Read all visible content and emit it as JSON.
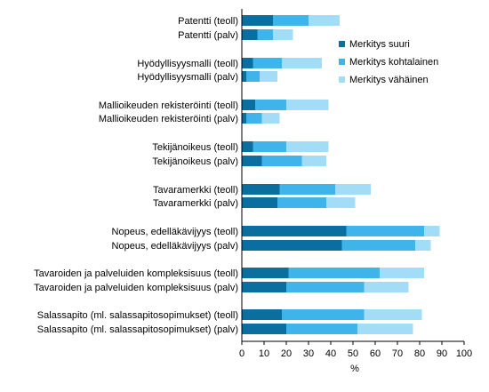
{
  "chart_data": {
    "type": "bar",
    "orientation": "horizontal",
    "stacked": true,
    "categories": [
      "Patentti (teoll)",
      "Patentti (palv)",
      "Hyödyllisyysmalli (teoll)",
      "Hyödyllisyysmalli (palv)",
      "Mallioikeuden rekisteröinti (teoll)",
      "Mallioikeuden rekisteröinti (palv)",
      "Tekijänoikeus (teoll)",
      "Tekijänoikeus (palv)",
      "Tavaramerkki (teoll)",
      "Tavaramerkki (palv)",
      "Nopeus, edelläkävijyys (teoll)",
      "Nopeus, edelläkävijyys (palv)",
      "Tavaroiden ja palveluiden kompleksisuus (teoll)",
      "Tavaroiden ja palveluiden kompleksisuus (palv)",
      "Salassapito (ml. salassapitosopimukset) (teoll)",
      "Salassapito (ml. salassapitosopimukset) (palv)"
    ],
    "series": [
      {
        "name": "Merkitys suuri",
        "color": "#0a6e9e",
        "values": [
          14,
          7,
          5,
          2,
          6,
          2,
          5,
          9,
          17,
          16,
          47,
          45,
          21,
          20,
          18,
          20
        ]
      },
      {
        "name": "Merkitys kohtalainen",
        "color": "#3fb4ea",
        "values": [
          16,
          7,
          13,
          6,
          14,
          7,
          15,
          18,
          25,
          22,
          35,
          33,
          41,
          35,
          37,
          32
        ]
      },
      {
        "name": "Merkitys vähäinen",
        "color": "#a3dcf7",
        "values": [
          14,
          9,
          18,
          8,
          19,
          8,
          19,
          11,
          16,
          13,
          7,
          7,
          20,
          20,
          26,
          25
        ]
      }
    ],
    "xlabel": "%",
    "xlim": [
      0,
      100
    ],
    "xticks": [
      0,
      10,
      20,
      30,
      40,
      50,
      60,
      70,
      80,
      90,
      100
    ],
    "grid": false,
    "legend_position": "right"
  }
}
